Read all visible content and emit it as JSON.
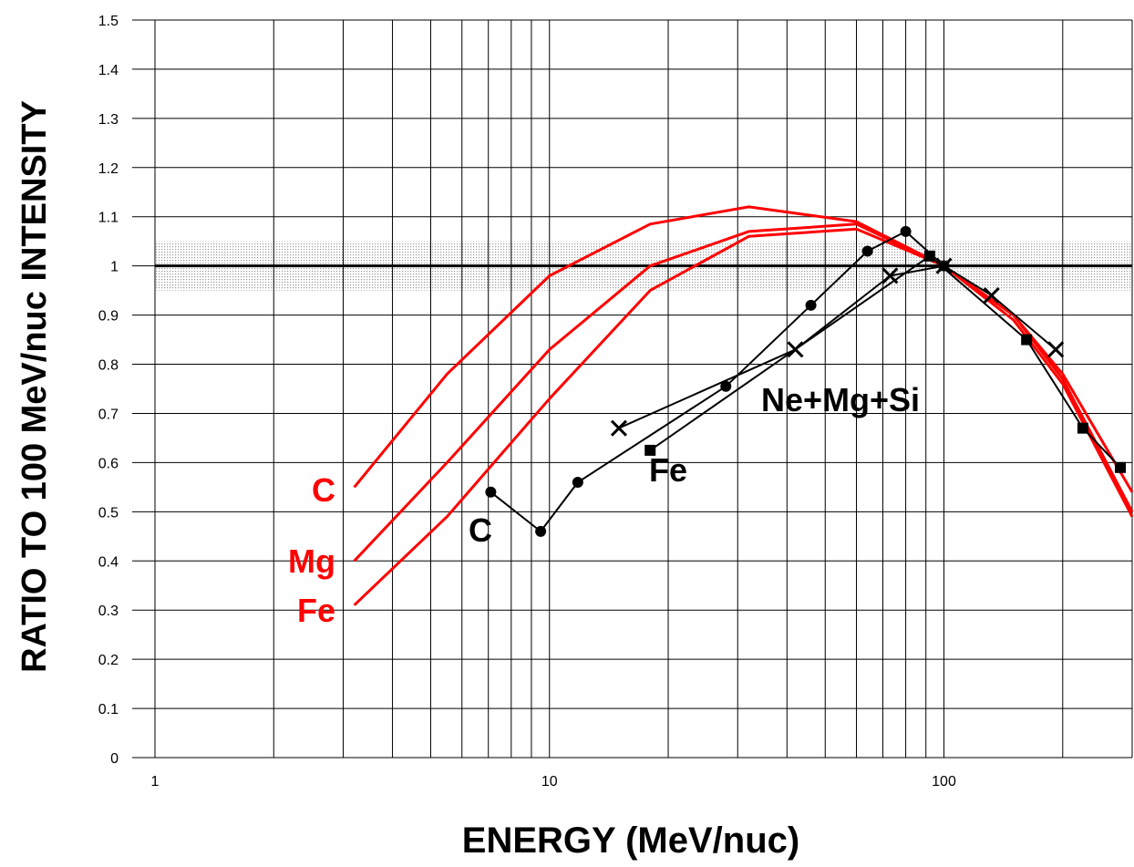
{
  "chart_data": {
    "type": "line",
    "title": "",
    "xlabel": "ENERGY (MeV/nuc)",
    "ylabel": "RATIO TO 100 MeV/nuc INTENSITY",
    "xscale": "log",
    "xlim": [
      1,
      300
    ],
    "ylim": [
      0,
      1.5
    ],
    "x_ticks": [
      1,
      10,
      100
    ],
    "x_tick_labels": [
      "1",
      "10",
      "100"
    ],
    "y_ticks": [
      0,
      0.1,
      0.2,
      0.3,
      0.4,
      0.5,
      0.6,
      0.7,
      0.8,
      0.9,
      1,
      1.1,
      1.2,
      1.3,
      1.4,
      1.5
    ],
    "y_tick_labels": [
      "0",
      "0.1",
      "0.2",
      "0.3",
      "0.4",
      "0.5",
      "0.6",
      "0.7",
      "0.8",
      "0.9",
      "1",
      "1.1",
      "1.2",
      "1.3",
      "1.4",
      "1.5"
    ],
    "grid": true,
    "reference_line": 1.0,
    "shaded_band": [
      0.95,
      1.05
    ],
    "colors": {
      "model": "#ff0000",
      "data": "#000000"
    },
    "series": [
      {
        "name": "C",
        "group": "model",
        "color": "#ff0000",
        "x": [
          3.2,
          5.5,
          10,
          18,
          32,
          60,
          100,
          150,
          200,
          300
        ],
        "y": [
          0.55,
          0.78,
          0.98,
          1.085,
          1.12,
          1.09,
          1.0,
          0.9,
          0.78,
          0.54
        ]
      },
      {
        "name": "Mg",
        "group": "model",
        "color": "#ff0000",
        "x": [
          3.2,
          5.5,
          10,
          18,
          32,
          60,
          100,
          150,
          200,
          300
        ],
        "y": [
          0.4,
          0.6,
          0.83,
          1.0,
          1.07,
          1.085,
          1.0,
          0.9,
          0.77,
          0.5
        ]
      },
      {
        "name": "Fe",
        "group": "model",
        "color": "#ff0000",
        "x": [
          3.2,
          5.5,
          10,
          18,
          32,
          60,
          100,
          150,
          200,
          300
        ],
        "y": [
          0.31,
          0.49,
          0.73,
          0.95,
          1.06,
          1.075,
          1.0,
          0.89,
          0.76,
          0.49
        ]
      },
      {
        "name": "C",
        "group": "data",
        "color": "#000000",
        "marker": "circle",
        "x": [
          7.1,
          9.5,
          11.8,
          28,
          46,
          64,
          80,
          100
        ],
        "y": [
          0.54,
          0.46,
          0.56,
          0.755,
          0.92,
          1.03,
          1.07,
          1.0
        ]
      },
      {
        "name": "Fe",
        "group": "data",
        "color": "#000000",
        "marker": "square",
        "x": [
          18,
          92,
          162,
          225,
          280
        ],
        "y": [
          0.625,
          1.02,
          0.85,
          0.67,
          0.59
        ]
      },
      {
        "name": "Ne+Mg+Si",
        "group": "data",
        "color": "#000000",
        "marker": "x",
        "x": [
          15,
          42,
          73,
          100,
          132,
          192
        ],
        "y": [
          0.67,
          0.83,
          0.98,
          1.0,
          0.94,
          0.83
        ]
      }
    ]
  }
}
